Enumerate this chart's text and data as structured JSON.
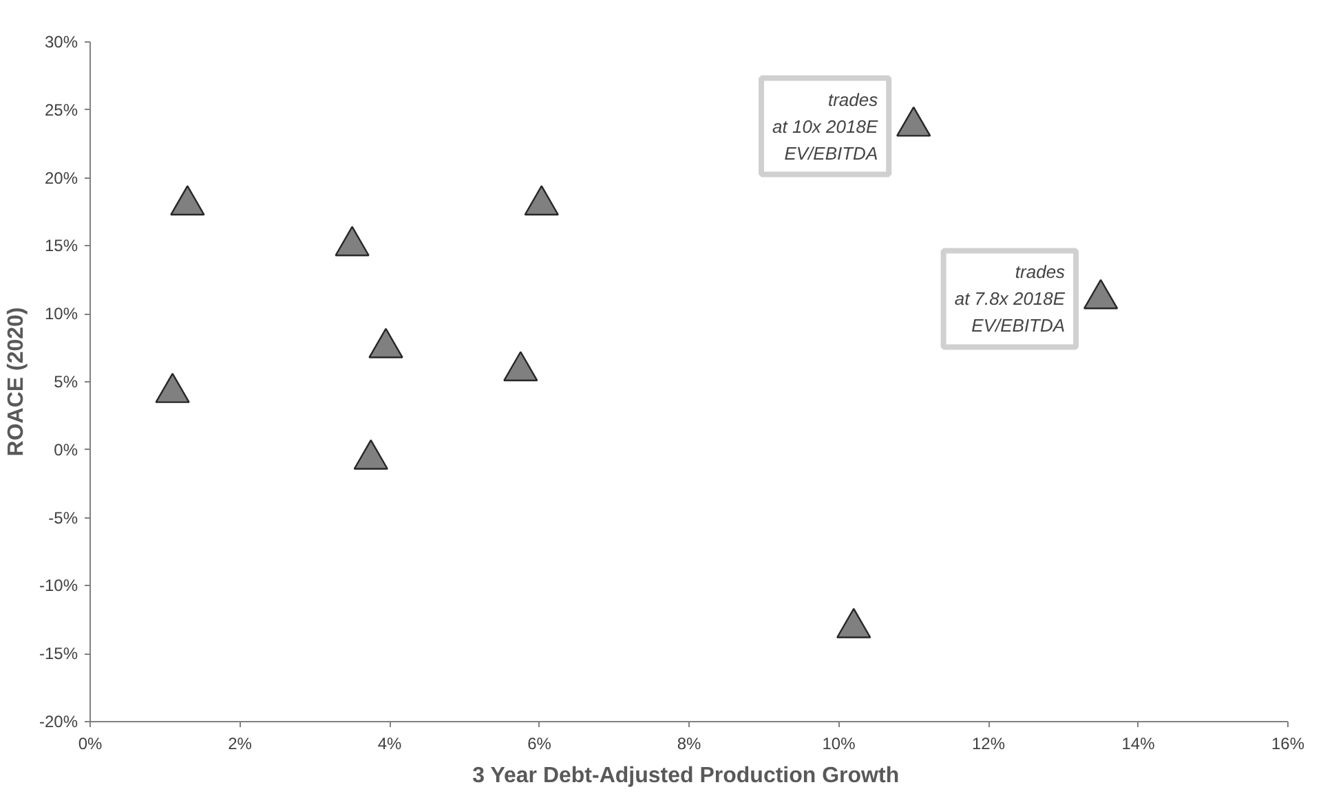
{
  "chart_data": {
    "type": "scatter",
    "xlabel": "3 Year Debt-Adjusted  Production Growth",
    "ylabel": "ROACE (2020)",
    "x": [
      1.3,
      1.1,
      3.5,
      3.95,
      3.75,
      5.75,
      6.03,
      10.2,
      11.0,
      13.5
    ],
    "series": [
      {
        "color": "#808080",
        "values": [
          18,
          4.2,
          15,
          7.5,
          -0.7,
          5.8,
          18,
          -13.1,
          23.8,
          11.1
        ]
      }
    ],
    "marker": "triangle",
    "grid": false,
    "xlim": [
      0,
      16
    ],
    "xticks": [
      {
        "value": 0,
        "label": "0%"
      },
      {
        "value": 2,
        "label": "2%"
      },
      {
        "value": 4,
        "label": "4%"
      },
      {
        "value": 6,
        "label": "6%"
      },
      {
        "value": 8,
        "label": "8%"
      },
      {
        "value": 10,
        "label": "10%"
      },
      {
        "value": 12,
        "label": "12%"
      },
      {
        "value": 14,
        "label": "14%"
      },
      {
        "value": 16,
        "label": "16%"
      }
    ],
    "ylim": [
      -20,
      30
    ],
    "yticks": [
      {
        "value": -20,
        "label": "-20%"
      },
      {
        "value": -15,
        "label": "-15%"
      },
      {
        "value": -10,
        "label": "-10%"
      },
      {
        "value": -5,
        "label": "-5%"
      },
      {
        "value": 0,
        "label": "0%"
      },
      {
        "value": 5,
        "label": "5%"
      },
      {
        "value": 10,
        "label": "10%"
      },
      {
        "value": 15,
        "label": "15%"
      },
      {
        "value": 20,
        "label": "20%"
      },
      {
        "value": 25,
        "label": "25%"
      },
      {
        "value": 30,
        "label": "30%"
      }
    ],
    "annotations": [
      {
        "text": "trades\nat 10x 2018E\nEV/EBITDA",
        "x": 11.0,
        "y": 23.8
      },
      {
        "text": "trades\nat 7.8x 2018E\nEV/EBITDA",
        "x": 13.5,
        "y": 11.1
      }
    ]
  }
}
